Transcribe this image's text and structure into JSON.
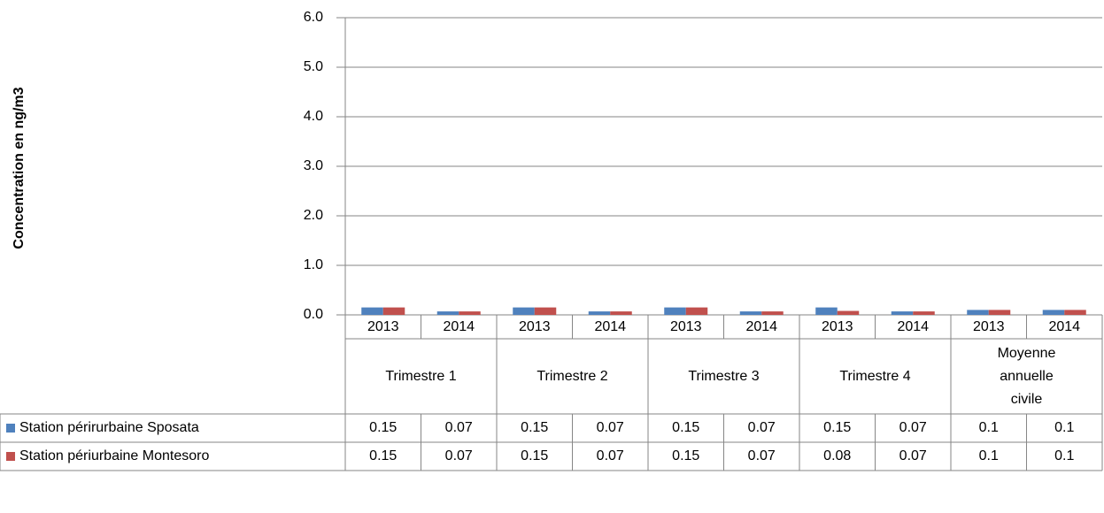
{
  "chart_data": {
    "type": "bar",
    "y_axis_label": "Concentration en ng/m3",
    "categories": [
      "2013",
      "2014",
      "2013",
      "2014",
      "2013",
      "2014",
      "2013",
      "2014",
      "2013",
      "2014"
    ],
    "groups": [
      "Trimestre 1",
      "Trimestre 2",
      "Trimestre 3",
      "Trimestre 4",
      "Moyenne annuelle civile"
    ],
    "series": [
      {
        "name": "Station périrurbaine Sposata",
        "color": "#4f81bd",
        "values": [
          0.15,
          0.07,
          0.15,
          0.07,
          0.15,
          0.07,
          0.15,
          0.07,
          0.1,
          0.1
        ]
      },
      {
        "name": "Station périurbaine Montesoro",
        "color": "#c0504d",
        "values": [
          0.15,
          0.07,
          0.15,
          0.07,
          0.15,
          0.07,
          0.08,
          0.07,
          0.1,
          0.1
        ]
      }
    ],
    "ylim": [
      0,
      6
    ],
    "yticks": [
      {
        "value": 0,
        "label": "0.0"
      },
      {
        "value": 1,
        "label": "1.0"
      },
      {
        "value": 2,
        "label": "2.0"
      },
      {
        "value": 3,
        "label": "3.0"
      },
      {
        "value": 4,
        "label": "4.0"
      },
      {
        "value": 5,
        "label": "5.0"
      },
      {
        "value": 6,
        "label": "6.0"
      }
    ],
    "grid": true
  }
}
